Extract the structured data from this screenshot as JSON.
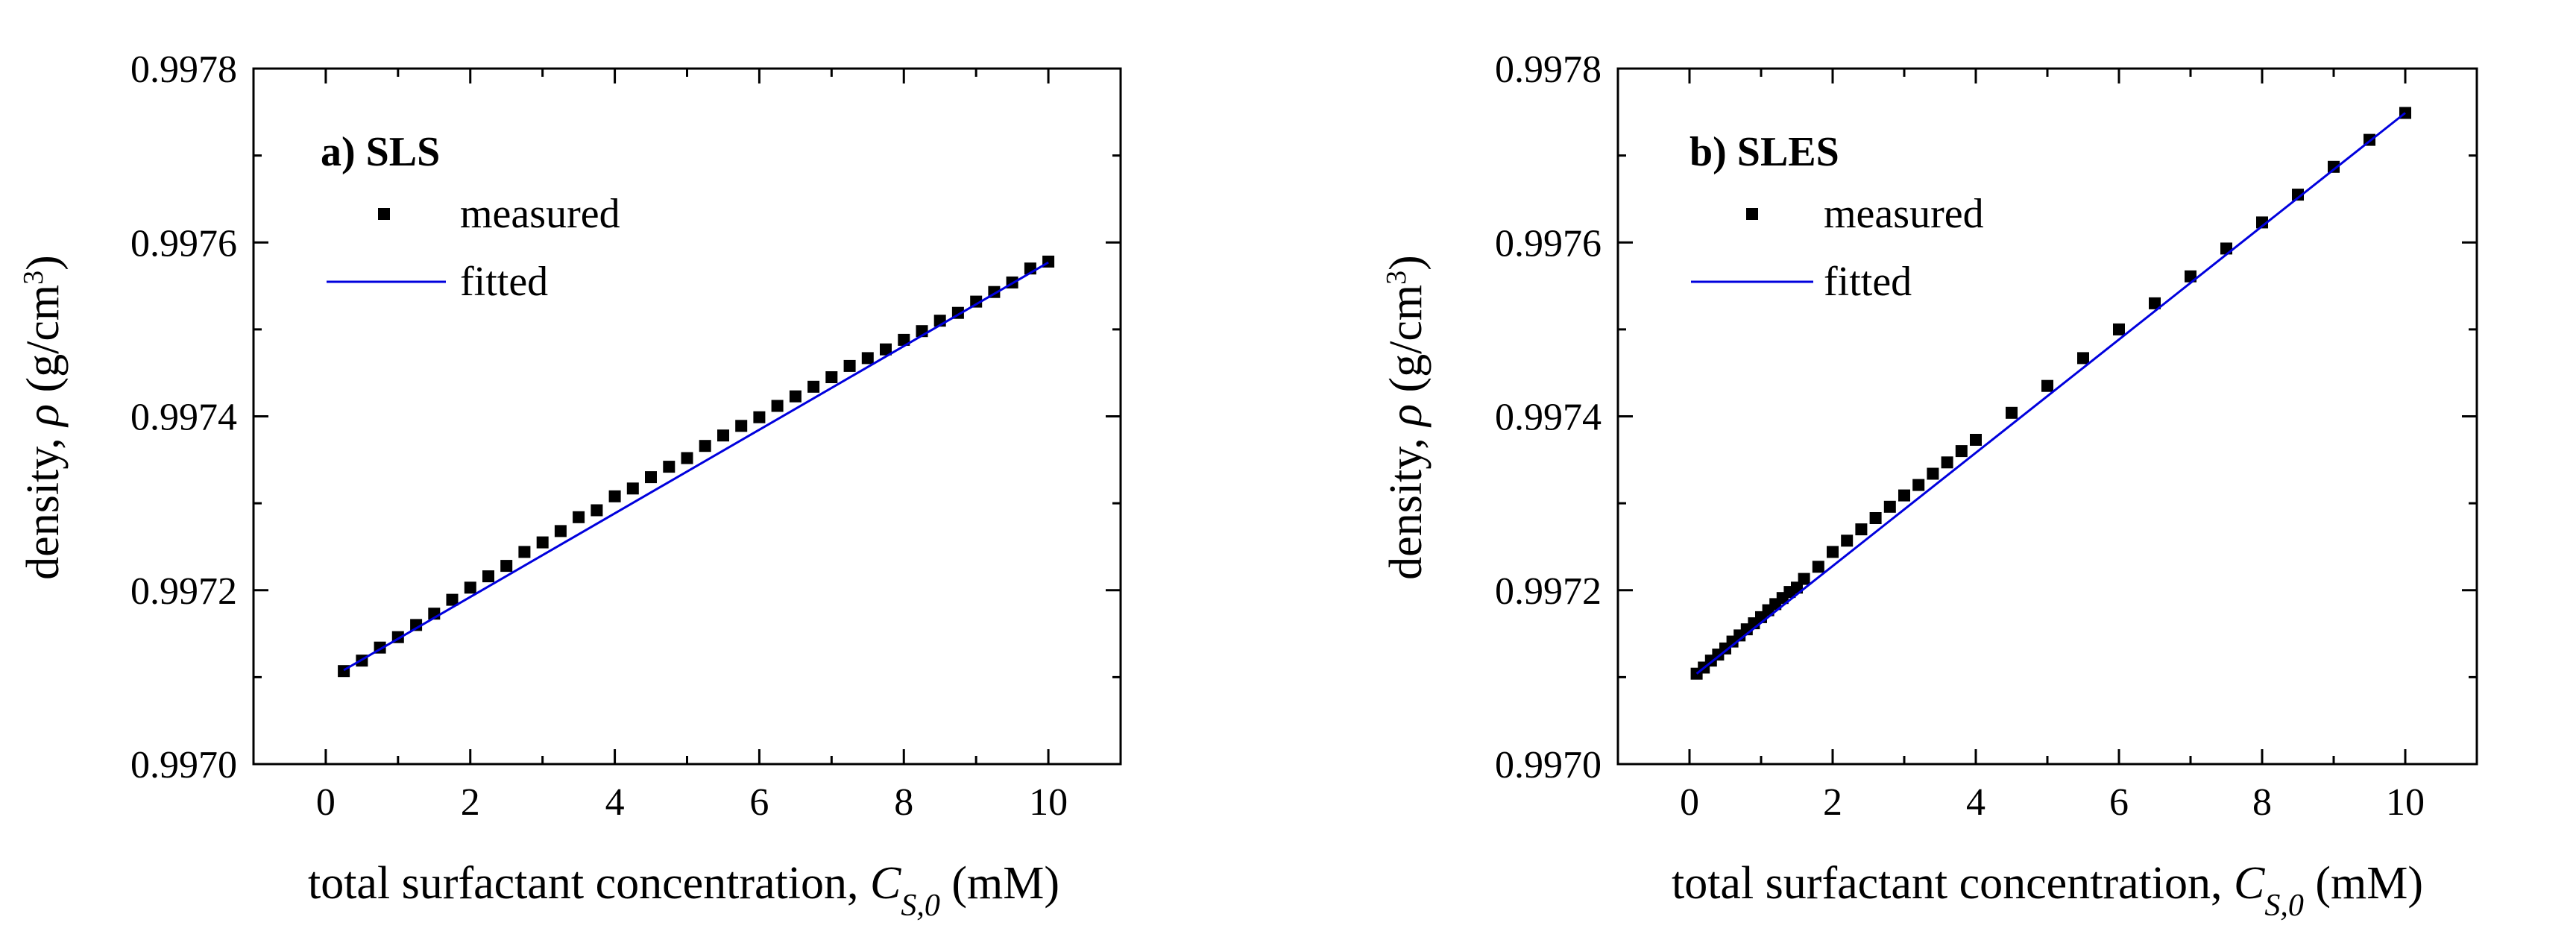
{
  "chart_data": [
    {
      "type": "scatter",
      "panel_letter": "a)",
      "title": "SLS",
      "ylabel": "density, ρ (g/cm³)",
      "ylabel_parts": {
        "prefix": "density, ",
        "symbol": "ρ",
        "unit": "(g/cm",
        "unit_sup": "3",
        "unit_close": ")"
      },
      "xlabel": "total surfactant concentration, C_S,0 (mM)",
      "xlabel_parts": {
        "prefix": "total surfactant concentration, ",
        "symbol": "C",
        "subscript": "S,0",
        "unit": " (mM)"
      },
      "xlim": [
        -1,
        11
      ],
      "ylim": [
        0.997,
        0.9978
      ],
      "xticks": [
        0,
        2,
        4,
        6,
        8,
        10
      ],
      "yticks": [
        0.997,
        0.9972,
        0.9974,
        0.9976,
        0.9978
      ],
      "ytick_labels": [
        "0.9970",
        "0.9972",
        "0.9974",
        "0.9976",
        "0.9978"
      ],
      "legend": {
        "position": "top-left",
        "entries": [
          "measured",
          "fitted"
        ]
      },
      "series": [
        {
          "name": "measured",
          "marker": "square",
          "color": "#000000",
          "x": [
            0.25,
            0.5,
            0.75,
            1.0,
            1.25,
            1.5,
            1.75,
            2.0,
            2.25,
            2.5,
            2.75,
            3.0,
            3.25,
            3.5,
            3.75,
            4.0,
            4.25,
            4.5,
            4.75,
            5.0,
            5.25,
            5.5,
            5.75,
            6.0,
            6.25,
            6.5,
            6.75,
            7.0,
            7.25,
            7.5,
            7.75,
            8.0,
            8.25,
            8.5,
            8.75,
            9.0,
            9.25,
            9.5,
            9.75,
            10.0
          ],
          "y": [
            0.997107,
            0.997119,
            0.997134,
            0.997146,
            0.99716,
            0.997173,
            0.997189,
            0.997203,
            0.997216,
            0.997228,
            0.997244,
            0.997255,
            0.997268,
            0.997284,
            0.997292,
            0.997308,
            0.997317,
            0.99733,
            0.997342,
            0.997352,
            0.997366,
            0.997378,
            0.997389,
            0.997399,
            0.997412,
            0.997423,
            0.997434,
            0.997445,
            0.997458,
            0.997467,
            0.997477,
            0.997488,
            0.997498,
            0.99751,
            0.997519,
            0.997532,
            0.997543,
            0.997554,
            0.99757,
            0.997578
          ]
        },
        {
          "name": "fitted",
          "line": true,
          "color": "#0000dd",
          "x": [
            0.25,
            10.0
          ],
          "y": [
            0.997108,
            0.997577
          ]
        }
      ]
    },
    {
      "type": "scatter",
      "panel_letter": "b)",
      "title": "SLES",
      "ylabel": "density, ρ (g/cm³)",
      "ylabel_parts": {
        "prefix": "density, ",
        "symbol": "ρ",
        "unit": "(g/cm",
        "unit_sup": "3",
        "unit_close": ")"
      },
      "xlabel": "total surfactant concentration, C_S,0 (mM)",
      "xlabel_parts": {
        "prefix": "total surfactant concentration, ",
        "symbol": "C",
        "subscript": "S,0",
        "unit": " (mM)"
      },
      "xlim": [
        -1,
        11
      ],
      "ylim": [
        0.997,
        0.9978
      ],
      "xticks": [
        0,
        2,
        4,
        6,
        8,
        10
      ],
      "yticks": [
        0.997,
        0.9972,
        0.9974,
        0.9976,
        0.9978
      ],
      "ytick_labels": [
        "0.9970",
        "0.9972",
        "0.9974",
        "0.9976",
        "0.9978"
      ],
      "legend": {
        "position": "top-left",
        "entries": [
          "measured",
          "fitted"
        ]
      },
      "series": [
        {
          "name": "measured",
          "marker": "square",
          "color": "#000000",
          "x": [
            0.1,
            0.2,
            0.3,
            0.4,
            0.5,
            0.6,
            0.7,
            0.8,
            0.9,
            1.0,
            1.1,
            1.2,
            1.3,
            1.4,
            1.5,
            1.6,
            1.8,
            2.0,
            2.2,
            2.4,
            2.6,
            2.8,
            3.0,
            3.2,
            3.4,
            3.6,
            3.8,
            4.0,
            4.5,
            5.0,
            5.5,
            6.0,
            6.5,
            7.0,
            7.5,
            8.0,
            8.5,
            9.0,
            9.5,
            10.0
          ],
          "y": [
            0.997104,
            0.997111,
            0.997119,
            0.997126,
            0.997133,
            0.997141,
            0.997148,
            0.997155,
            0.997162,
            0.997169,
            0.997177,
            0.997184,
            0.997191,
            0.997198,
            0.997203,
            0.997213,
            0.997227,
            0.997244,
            0.997257,
            0.99727,
            0.997283,
            0.997296,
            0.997309,
            0.997321,
            0.997334,
            0.997347,
            0.99736,
            0.997373,
            0.997404,
            0.997435,
            0.997467,
            0.9975,
            0.99753,
            0.997561,
            0.997593,
            0.997623,
            0.997655,
            0.997687,
            0.997718,
            0.997749
          ]
        },
        {
          "name": "fitted",
          "line": true,
          "color": "#0000dd",
          "x": [
            0.1,
            10.0
          ],
          "y": [
            0.997104,
            0.997749
          ]
        }
      ]
    }
  ]
}
